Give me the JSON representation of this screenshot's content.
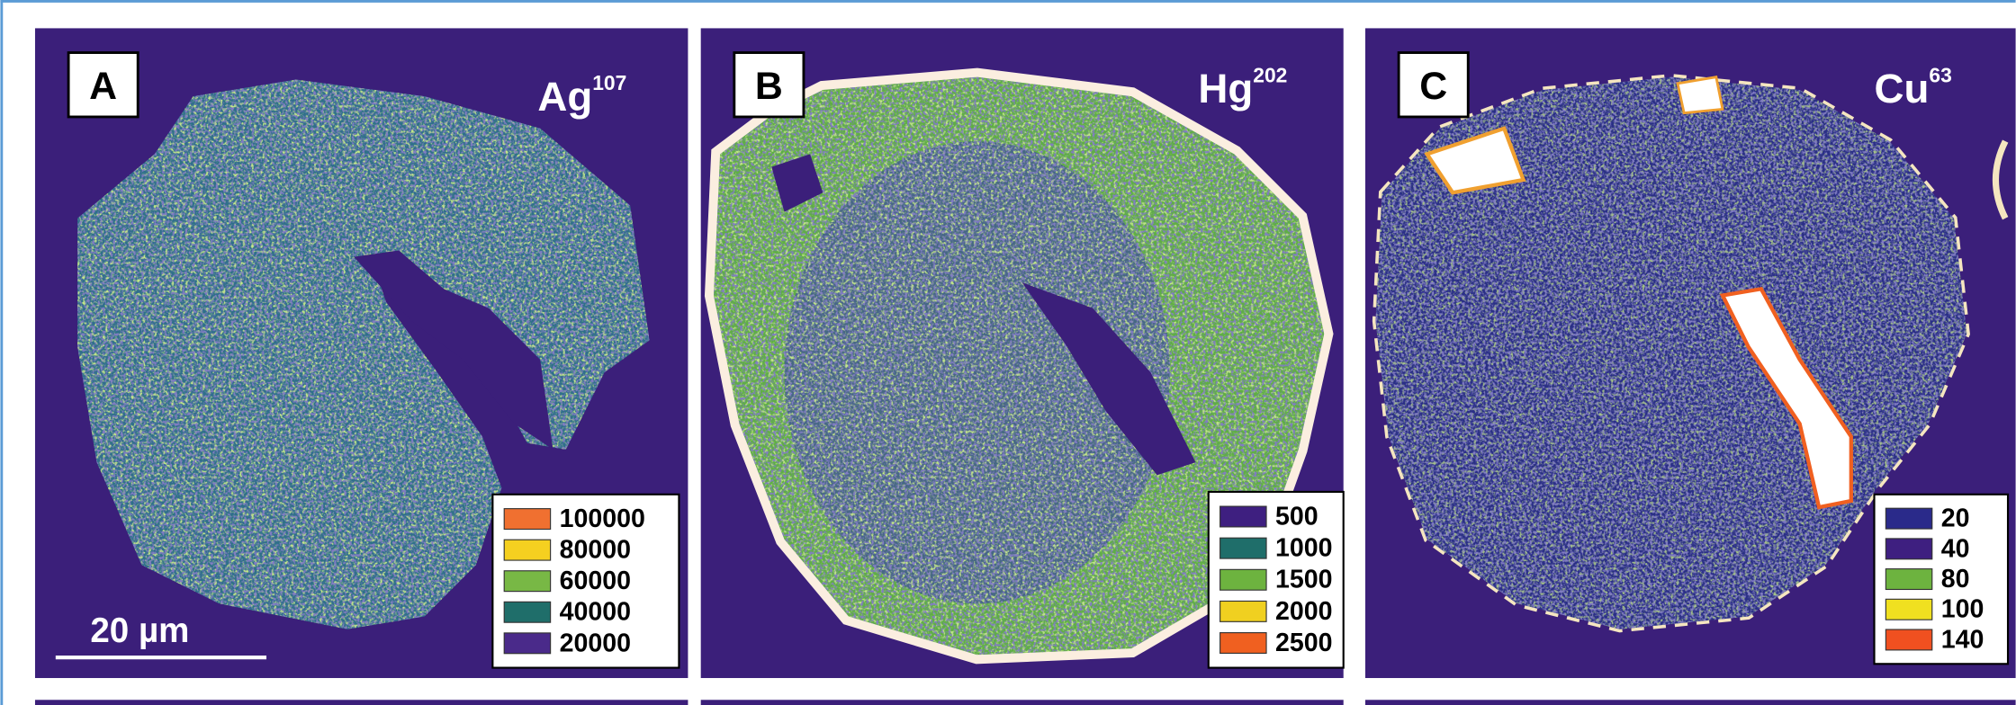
{
  "panels": [
    {
      "label": "A",
      "element": "Ag",
      "isotope": "107",
      "legend": [
        {
          "label": "100000",
          "color": "#f07030"
        },
        {
          "label": "80000",
          "color": "#f5d020"
        },
        {
          "label": "60000",
          "color": "#78b845"
        },
        {
          "label": "40000",
          "color": "#1f6e6a"
        },
        {
          "label": "20000",
          "color": "#4a2a8a"
        }
      ]
    },
    {
      "label": "B",
      "element": "Hg",
      "isotope": "202",
      "legend": [
        {
          "label": "500",
          "color": "#3e1f80"
        },
        {
          "label": "1000",
          "color": "#1f6e6a"
        },
        {
          "label": "1500",
          "color": "#6db33f"
        },
        {
          "label": "2000",
          "color": "#f0d020"
        },
        {
          "label": "2500",
          "color": "#f06020"
        }
      ]
    },
    {
      "label": "C",
      "element": "Cu",
      "isotope": "63",
      "legend": [
        {
          "label": "20",
          "color": "#2a2a8a"
        },
        {
          "label": "40",
          "color": "#3e1f80"
        },
        {
          "label": "80",
          "color": "#6db33f"
        },
        {
          "label": "100",
          "color": "#f0e020"
        },
        {
          "label": "140",
          "color": "#f05020"
        }
      ]
    }
  ],
  "scale_bar": {
    "label": "20 µm"
  }
}
